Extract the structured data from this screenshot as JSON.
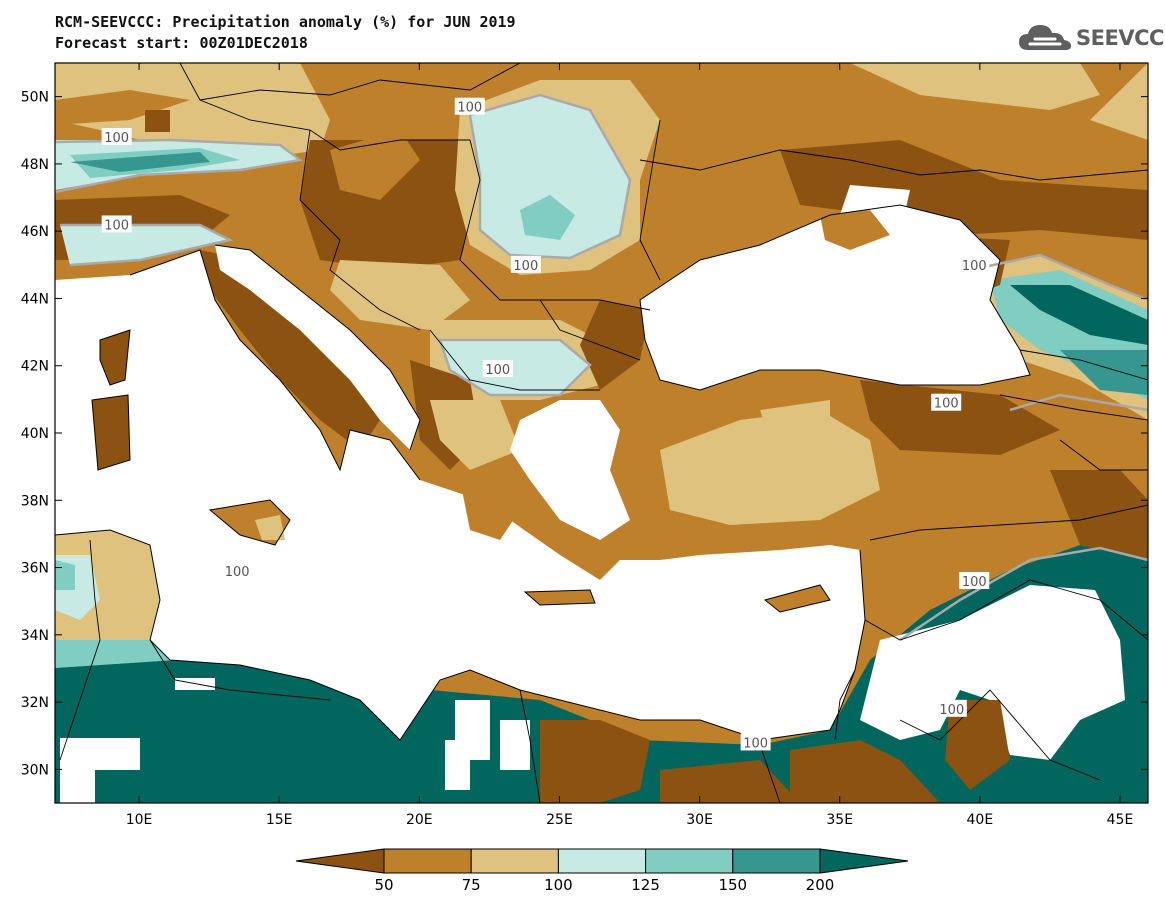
{
  "header": {
    "title": "RCM-SEEVCCC: Precipitation anomaly (%) for JUN 2019",
    "subtitle": "Forecast start: 00Z01DEC2018"
  },
  "logo": {
    "text": "SEEVCCC",
    "icon": "cloud-icon",
    "color": "#5f5f5f"
  },
  "map": {
    "lon_range": [
      7,
      46
    ],
    "lat_range": [
      29,
      51
    ],
    "lat_ticks": [
      {
        "value": 50,
        "label": "50N"
      },
      {
        "value": 48,
        "label": "48N"
      },
      {
        "value": 46,
        "label": "46N"
      },
      {
        "value": 44,
        "label": "44N"
      },
      {
        "value": 42,
        "label": "42N"
      },
      {
        "value": 40,
        "label": "40N"
      },
      {
        "value": 38,
        "label": "38N"
      },
      {
        "value": 36,
        "label": "36N"
      },
      {
        "value": 34,
        "label": "34N"
      },
      {
        "value": 32,
        "label": "32N"
      },
      {
        "value": 30,
        "label": "30N"
      }
    ],
    "lon_ticks": [
      {
        "value": 10,
        "label": "10E"
      },
      {
        "value": 15,
        "label": "15E"
      },
      {
        "value": 20,
        "label": "20E"
      },
      {
        "value": 25,
        "label": "25E"
      },
      {
        "value": 30,
        "label": "30E"
      },
      {
        "value": 35,
        "label": "35E"
      },
      {
        "value": 40,
        "label": "40E"
      },
      {
        "value": 45,
        "label": "45E"
      }
    ],
    "contour_labels": [
      {
        "text": "100",
        "lon": 9.2,
        "lat": 48.8
      },
      {
        "text": "100",
        "lon": 9.2,
        "lat": 46.2
      },
      {
        "text": "100",
        "lon": 21.8,
        "lat": 49.7
      },
      {
        "text": "100",
        "lon": 23.8,
        "lat": 45.0
      },
      {
        "text": "100",
        "lon": 22.8,
        "lat": 41.9
      },
      {
        "text": "100",
        "lon": 39.8,
        "lat": 45.0
      },
      {
        "text": "100",
        "lon": 38.8,
        "lat": 40.9
      },
      {
        "text": "100",
        "lon": 39.8,
        "lat": 35.6
      },
      {
        "text": "100",
        "lon": 13.5,
        "lat": 35.9
      },
      {
        "text": "100",
        "lon": 39.0,
        "lat": 31.8
      },
      {
        "text": "100",
        "lon": 32.0,
        "lat": 30.8
      }
    ],
    "colors": {
      "ocean": "#ffffff",
      "lt50": "#8c5212",
      "50_75": "#bf802b",
      "75_100": "#dfc27d",
      "100_125": "#c7eae5",
      "125_150": "#80cdc1",
      "150_200": "#35978f",
      "gt200": "#01665e"
    }
  },
  "colorbar": {
    "labels": [
      "50",
      "75",
      "100",
      "125",
      "150",
      "200"
    ],
    "colors": [
      "#8c5212",
      "#bf802b",
      "#dfc27d",
      "#c7eae5",
      "#80cdc1",
      "#35978f",
      "#01665e"
    ]
  }
}
